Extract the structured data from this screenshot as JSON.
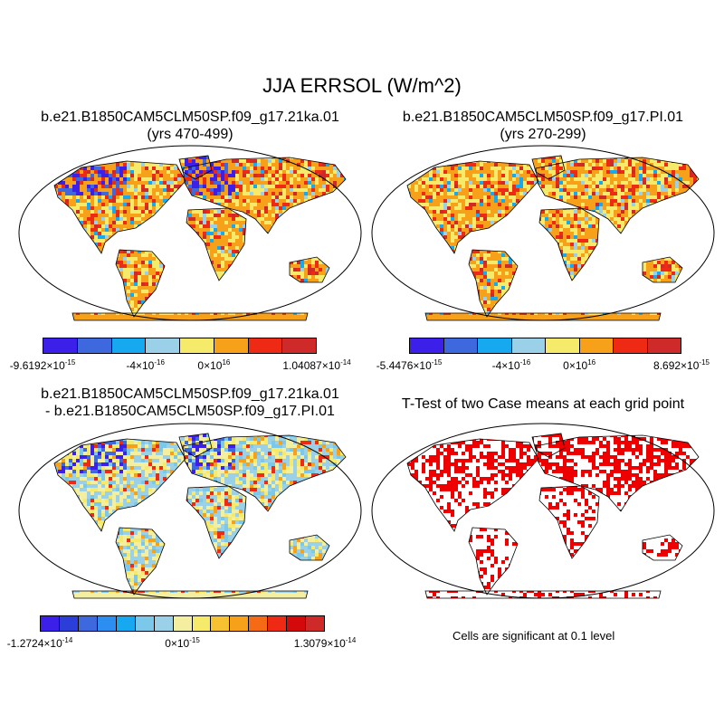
{
  "title": "JJA ERRSOL (W/m^2)",
  "panels": [
    {
      "id": "case1",
      "title_lines": [
        "b.e21.B1850CAM5CLM50SP.f09_g17.21ka.01",
        "(yrs 470-499)"
      ],
      "colorbar": {
        "colors": [
          "#3c1fe8",
          "#3d68de",
          "#16a9ef",
          "#9ad1e8",
          "#f6ea6a",
          "#f7a11a",
          "#ee2a14",
          "#cf2a2a"
        ],
        "labels": [
          {
            "base": "-9.6192",
            "exp": "-15"
          },
          {
            "base": "-4",
            "exp": "-16"
          },
          {
            "base": "0",
            "exp": "16"
          },
          {
            "base": "1.04087",
            "exp": "-14"
          }
        ]
      }
    },
    {
      "id": "case2",
      "title_lines": [
        "b.e21.B1850CAM5CLM50SP.f09_g17.PI.01",
        "(yrs 270-299)"
      ],
      "colorbar": {
        "colors": [
          "#3c1fe8",
          "#3d68de",
          "#16a9ef",
          "#9ad1e8",
          "#f6ea6a",
          "#f7a11a",
          "#ee2a14",
          "#cf2a2a"
        ],
        "labels": [
          {
            "base": "-5.4476",
            "exp": "-15"
          },
          {
            "base": "-4",
            "exp": "-16"
          },
          {
            "base": "0",
            "exp": "16"
          },
          {
            "base": "8.692",
            "exp": "-15"
          }
        ]
      }
    },
    {
      "id": "diff",
      "title_lines": [
        "b.e21.B1850CAM5CLM50SP.f09_g17.21ka.01",
        "- b.e21.B1850CAM5CLM50SP.f09_g17.PI.01"
      ],
      "colorbar": {
        "colors": [
          "#3c1fe8",
          "#2b3fd8",
          "#3d68de",
          "#2c8ef0",
          "#16a9ef",
          "#7cc8ea",
          "#9ad1e8",
          "#f4eea0",
          "#f6ea6a",
          "#f6c232",
          "#f7a11a",
          "#f56a14",
          "#ee2a14",
          "#d40a0a",
          "#cf2a2a"
        ],
        "labels": [
          {
            "base": "-1.2724",
            "exp": "-14"
          },
          {
            "base": "0",
            "exp": "-15"
          },
          {
            "base": "1.3079",
            "exp": "-14"
          }
        ]
      }
    },
    {
      "id": "ttest",
      "title_lines": [
        "T-Test of two Case means at each grid point"
      ],
      "note": "Cells are significant at 0.1 level"
    }
  ]
}
